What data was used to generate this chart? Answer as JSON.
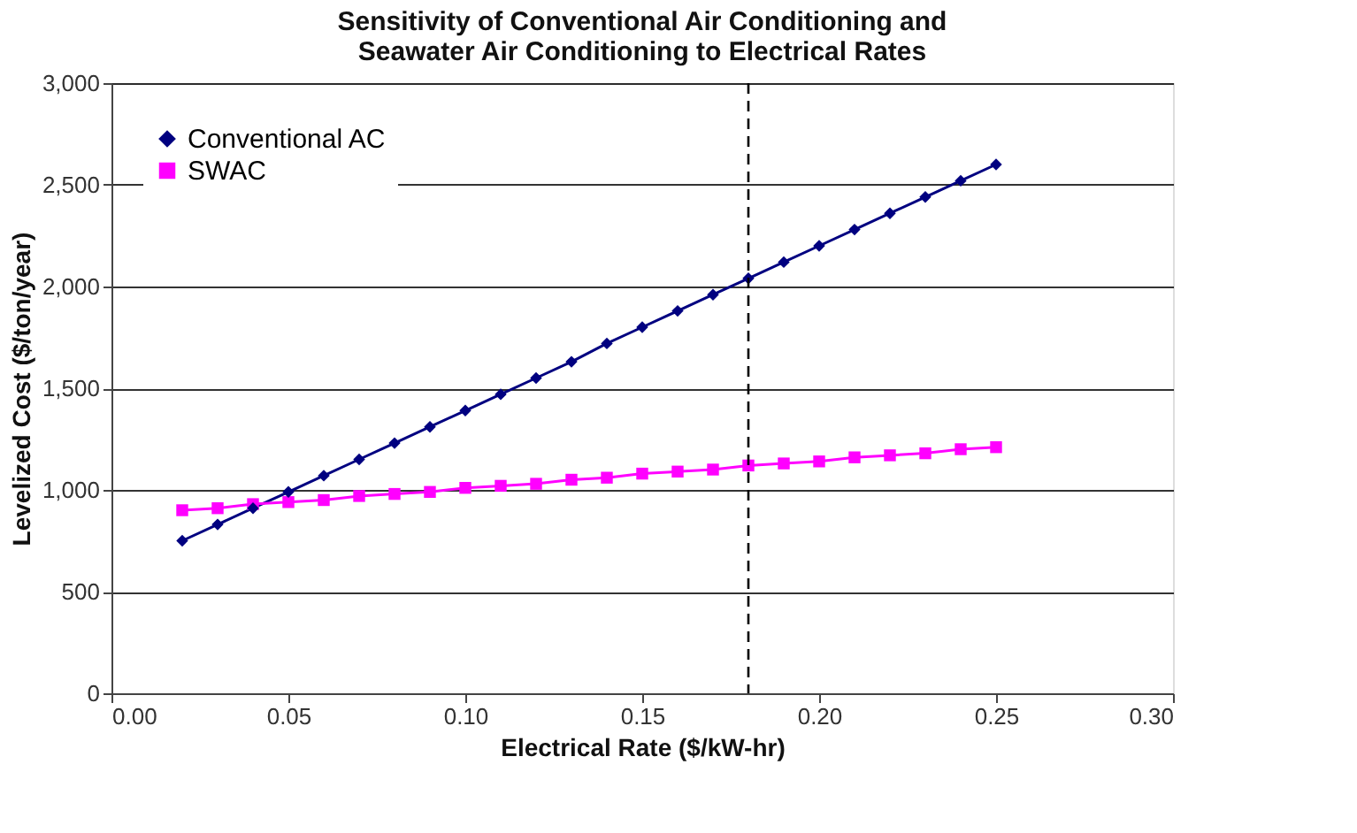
{
  "chart_data": {
    "type": "line",
    "title": "Sensitivity of Conventional Air Conditioning and Seawater Air Conditioning to Electrical Rates",
    "xlabel": "Electrical Rate ($/kW-hr)",
    "ylabel": "Levelized Cost ($/ton/year)",
    "x": [
      0.02,
      0.03,
      0.04,
      0.05,
      0.06,
      0.07,
      0.08,
      0.09,
      0.1,
      0.11,
      0.12,
      0.13,
      0.14,
      0.15,
      0.16,
      0.17,
      0.18,
      0.19,
      0.2,
      0.21,
      0.22,
      0.23,
      0.24,
      0.25
    ],
    "series": [
      {
        "name": "Conventional AC",
        "color": "#000080",
        "marker": "diamond",
        "values": [
          750,
          830,
          910,
          990,
          1070,
          1150,
          1230,
          1310,
          1390,
          1470,
          1550,
          1630,
          1720,
          1800,
          1880,
          1960,
          2040,
          2120,
          2200,
          2280,
          2360,
          2440,
          2520,
          2600
        ]
      },
      {
        "name": "SWAC",
        "color": "#ff00ff",
        "marker": "square",
        "values": [
          900,
          910,
          930,
          940,
          950,
          970,
          980,
          990,
          1010,
          1020,
          1030,
          1050,
          1060,
          1080,
          1090,
          1100,
          1120,
          1130,
          1140,
          1160,
          1170,
          1180,
          1200,
          1210
        ]
      }
    ],
    "xlim": [
      0,
      0.3
    ],
    "ylim": [
      0,
      3000
    ],
    "xticks": [
      {
        "value": 0,
        "label": "0.00"
      },
      {
        "value": 0.05,
        "label": "0.05"
      },
      {
        "value": 0.1,
        "label": "0.10"
      },
      {
        "value": 0.15,
        "label": "0.15"
      },
      {
        "value": 0.2,
        "label": "0.20"
      },
      {
        "value": 0.25,
        "label": "0.25"
      },
      {
        "value": 0.3,
        "label": "0.30"
      }
    ],
    "yticks": [
      0,
      500,
      {
        "value": 1000,
        "label": "1,000"
      },
      {
        "value": 1500,
        "label": "1,500"
      },
      {
        "value": 2000,
        "label": "2,000"
      },
      {
        "value": 2500,
        "label": "2,500"
      },
      {
        "value": 3000,
        "label": "3,000"
      }
    ],
    "ref_lines": [
      {
        "axis": "x",
        "value": 0.18,
        "label": null,
        "color": "#000000",
        "line_style": "dashed"
      }
    ],
    "grid": "y",
    "legend": "top left",
    "line_style": "solid"
  }
}
